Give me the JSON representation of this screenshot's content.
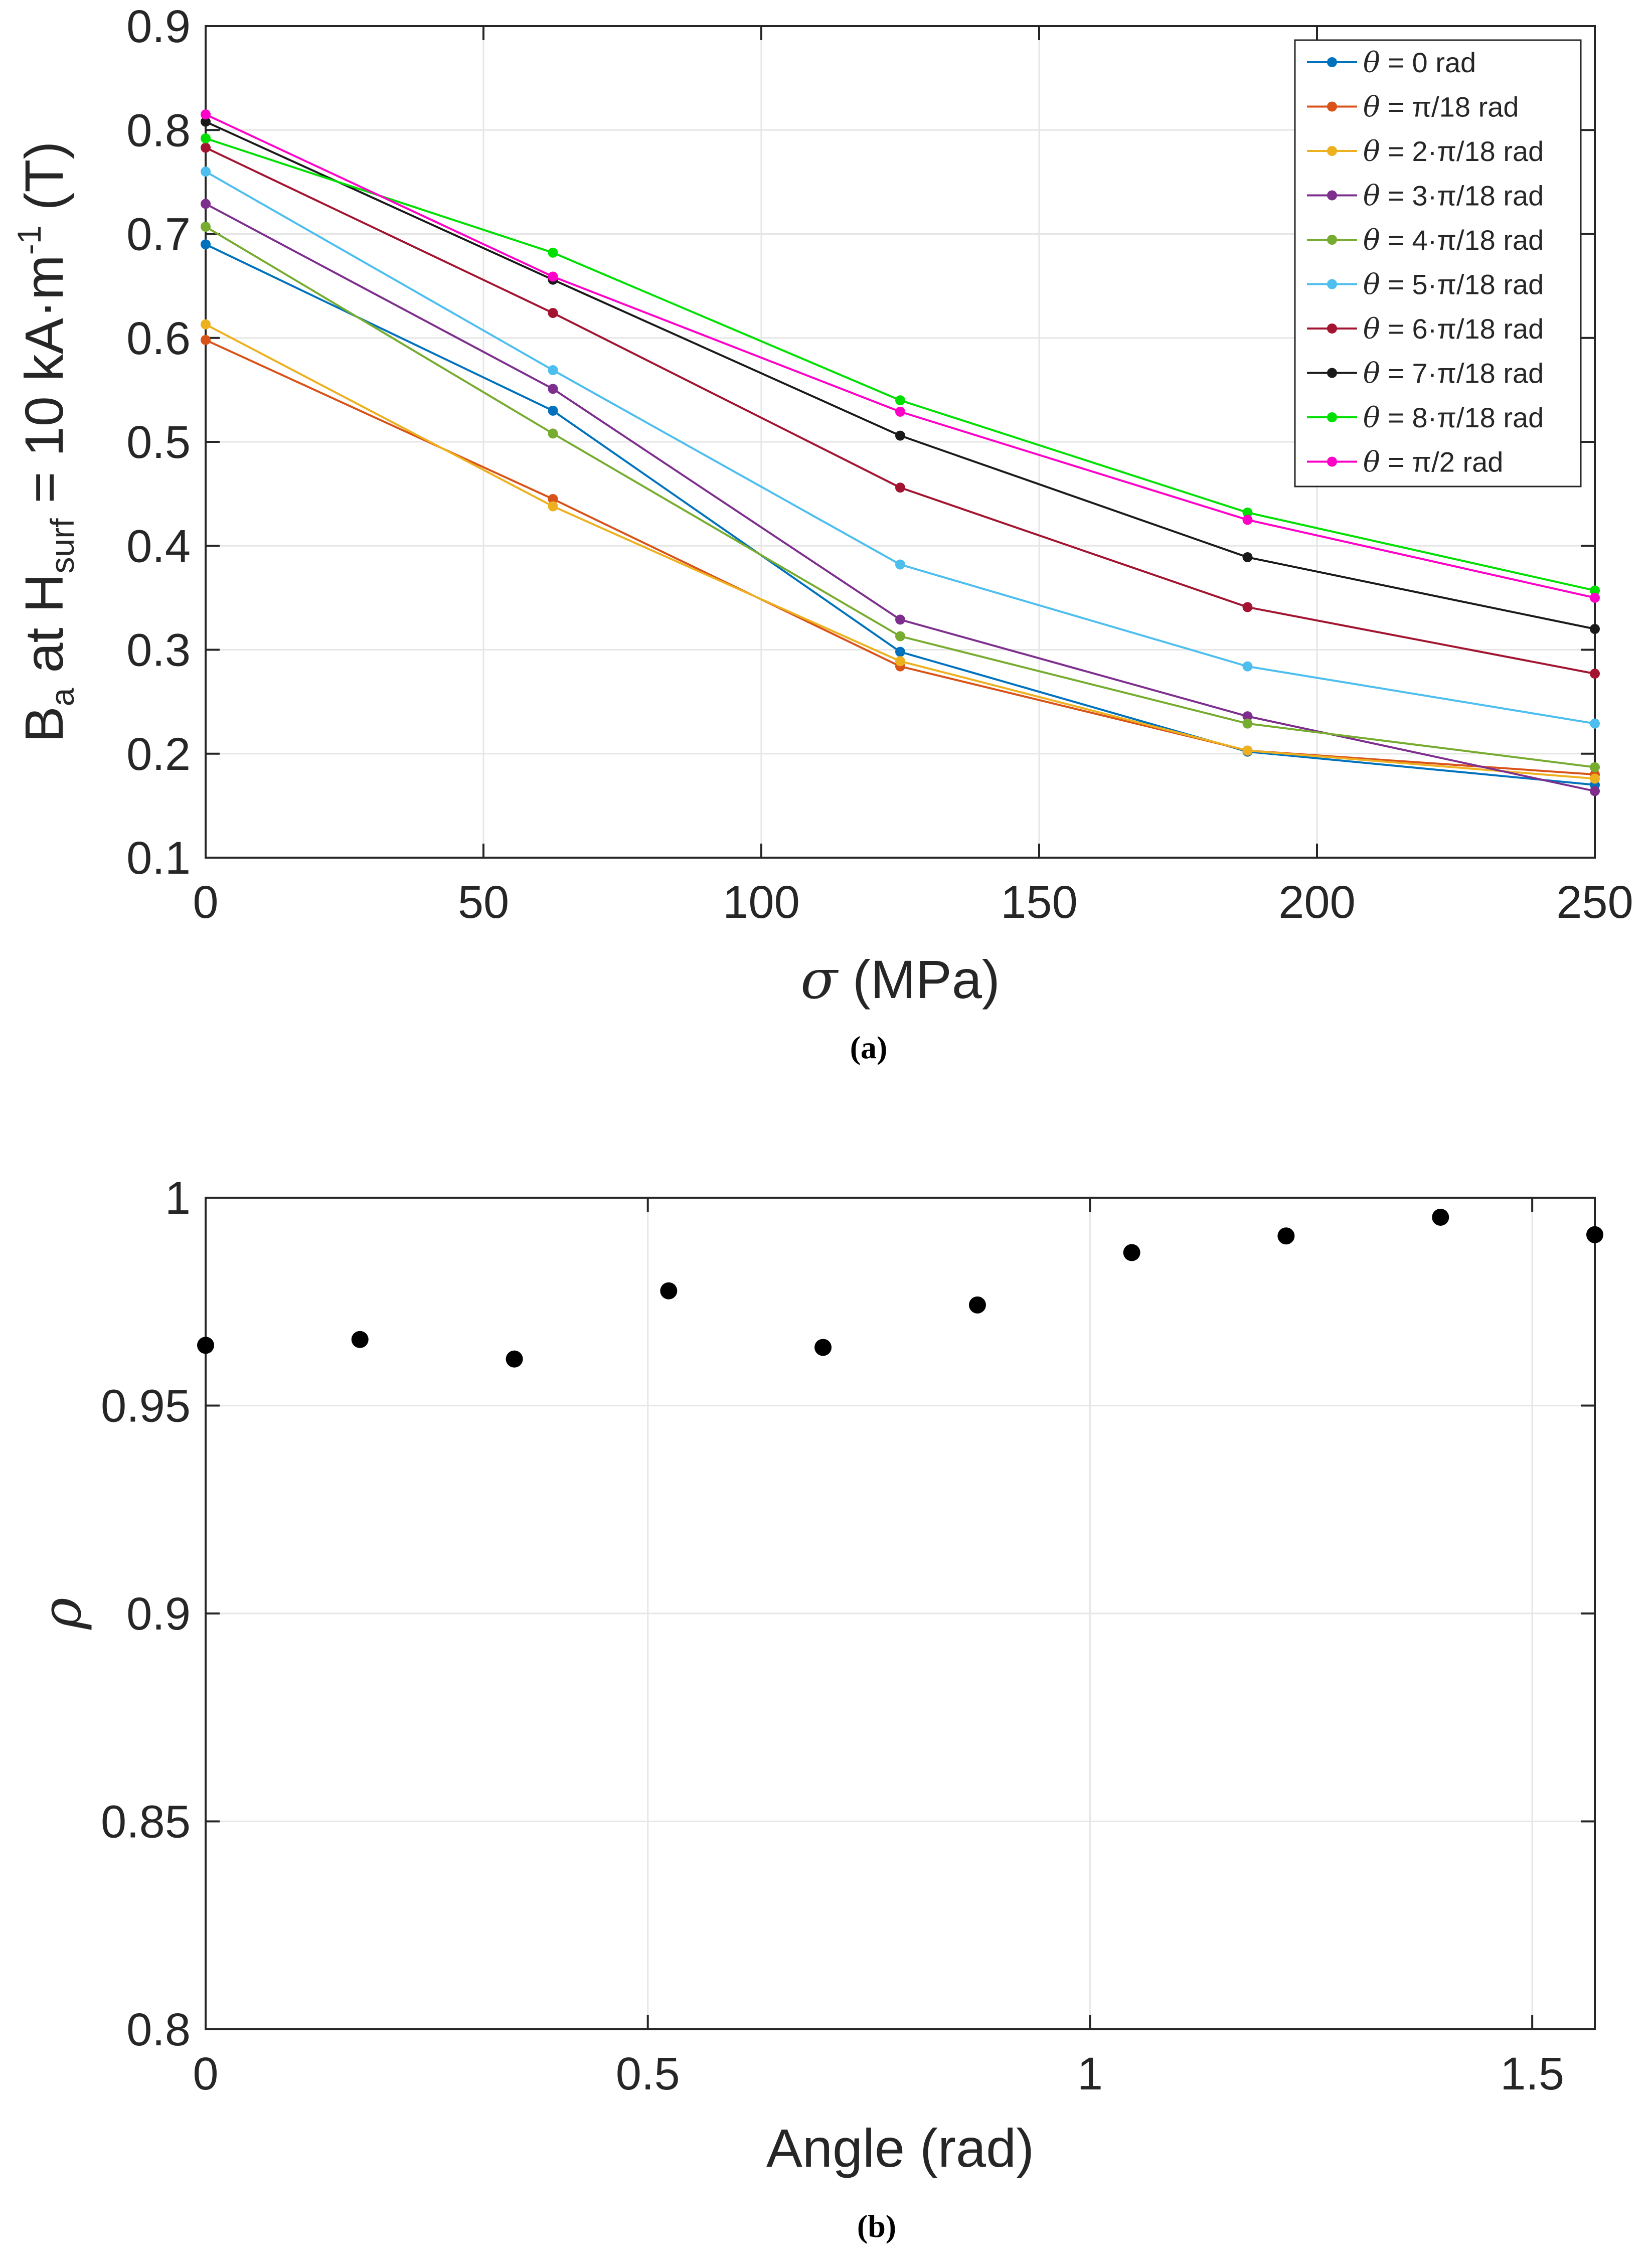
{
  "chart_data": [
    {
      "type": "line",
      "panel_label": "(a)",
      "title": "",
      "ylabel_parts": {
        "b": "B",
        "a": "a",
        "at": " at H",
        "surf": "surf",
        "eq": " = 10 kA·m",
        "exp": "-1",
        "unit": " (T)"
      },
      "xlabel_parts": {
        "sym": "σ",
        "rest": " (MPa)"
      },
      "xlim": [
        0,
        250
      ],
      "ylim": [
        0.1,
        0.9
      ],
      "xticks": [
        "0",
        "50",
        "100",
        "150",
        "200",
        "250"
      ],
      "yticks": [
        "0.1",
        "0.2",
        "0.3",
        "0.4",
        "0.5",
        "0.6",
        "0.7",
        "0.8",
        "0.9"
      ],
      "x": [
        0,
        62.5,
        125,
        187.5,
        250
      ],
      "grid": true,
      "legend_position": "top-right",
      "series": [
        {
          "name": "θ = 0 rad",
          "sym": "θ",
          "text": " = 0 rad",
          "color": "#0072BD",
          "values": [
            0.69,
            0.53,
            0.298,
            0.202,
            0.17
          ]
        },
        {
          "name": "θ = π/18 rad",
          "sym": "θ",
          "text": " = π/18 rad",
          "color": "#D95319",
          "values": [
            0.598,
            0.445,
            0.284,
            0.203,
            0.18
          ]
        },
        {
          "name": "θ = 2·π/18 rad",
          "sym": "θ",
          "text": " = 2·π/18 rad",
          "color": "#EDB120",
          "values": [
            0.613,
            0.438,
            0.289,
            0.203,
            0.176
          ]
        },
        {
          "name": "θ = 3·π/18 rad",
          "sym": "θ",
          "text": " = 3·π/18 rad",
          "color": "#7E2F8E",
          "values": [
            0.729,
            0.551,
            0.329,
            0.236,
            0.164
          ]
        },
        {
          "name": "θ = 4·π/18 rad",
          "sym": "θ",
          "text": " = 4·π/18 rad",
          "color": "#77AC30",
          "values": [
            0.707,
            0.508,
            0.313,
            0.229,
            0.187
          ]
        },
        {
          "name": "θ = 5·π/18 rad",
          "sym": "θ",
          "text": " = 5·π/18 rad",
          "color": "#4DBEEE",
          "values": [
            0.76,
            0.569,
            0.382,
            0.284,
            0.229
          ]
        },
        {
          "name": "θ = 6·π/18 rad",
          "sym": "θ",
          "text": " = 6·π/18 rad",
          "color": "#A2142F",
          "values": [
            0.783,
            0.624,
            0.456,
            0.341,
            0.277
          ]
        },
        {
          "name": "θ = 7·π/18 rad",
          "sym": "θ",
          "text": " = 7·π/18 rad",
          "color": "#1a1a1a",
          "values": [
            0.808,
            0.656,
            0.506,
            0.389,
            0.32
          ]
        },
        {
          "name": "θ = 8·π/18 rad",
          "sym": "θ",
          "text": " = 8·π/18 rad",
          "color": "#00E000",
          "values": [
            0.792,
            0.682,
            0.54,
            0.432,
            0.357
          ]
        },
        {
          "name": "θ = π/2 rad",
          "sym": "θ",
          "text": " = π/2 rad",
          "color": "#FF00C8",
          "values": [
            0.815,
            0.659,
            0.529,
            0.425,
            0.35
          ]
        }
      ]
    },
    {
      "type": "scatter",
      "panel_label": "(b)",
      "title": "",
      "xlabel": "Angle (rad)",
      "ylabel": "ρ",
      "xlim": [
        0,
        1.5708
      ],
      "ylim": [
        0.8,
        1.0
      ],
      "xticks": [
        "0",
        "0.5",
        "1",
        "1.5"
      ],
      "yticks": [
        "0.8",
        "0.85",
        "0.9",
        "0.95",
        "1"
      ],
      "grid": true,
      "color": "#000000",
      "x": [
        0,
        0.1745,
        0.3491,
        0.5236,
        0.6981,
        0.8727,
        1.0472,
        1.2217,
        1.3963,
        1.5708
      ],
      "y": [
        0.9645,
        0.9659,
        0.9612,
        0.9776,
        0.964,
        0.9742,
        0.9868,
        0.9908,
        0.9953,
        0.9911
      ]
    }
  ]
}
